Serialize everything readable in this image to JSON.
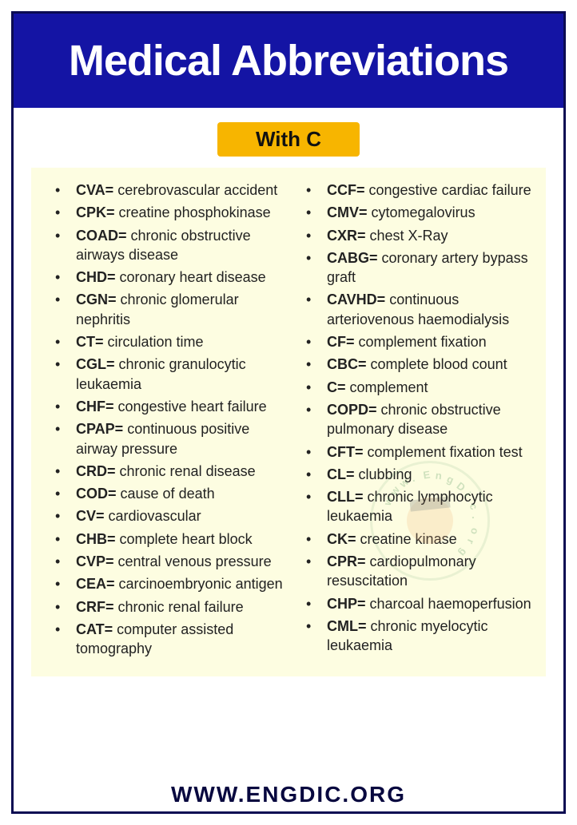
{
  "header": {
    "title": "Medical Abbreviations",
    "bg_color": "#1414a4",
    "title_color": "#ffffff",
    "title_fontsize": 54
  },
  "subtitle": {
    "label": "With C",
    "bg_color": "#f7b500",
    "text_color": "#111111",
    "fontsize": 26
  },
  "panel": {
    "bg_color": "#fdfde1",
    "text_color": "#222222",
    "fontsize": 18
  },
  "columns": {
    "left": [
      {
        "abbr": "CVA",
        "def": "cerebrovascular accident"
      },
      {
        "abbr": "CPK",
        "def": "creatine phosphokinase"
      },
      {
        "abbr": "COAD",
        "def": "chronic obstructive airways disease"
      },
      {
        "abbr": "CHD",
        "def": "coronary heart disease"
      },
      {
        "abbr": "CGN",
        "def": "chronic glomerular nephritis"
      },
      {
        "abbr": "CT",
        "def": "circulation time"
      },
      {
        "abbr": "CGL",
        "def": "chronic granulocytic leukaemia"
      },
      {
        "abbr": "CHF",
        "def": "congestive heart failure"
      },
      {
        "abbr": "CPAP",
        "def": "continuous positive airway pressure"
      },
      {
        "abbr": "CRD",
        "def": "chronic renal disease"
      },
      {
        "abbr": "COD",
        "def": "cause of death"
      },
      {
        "abbr": "CV",
        "def": "cardiovascular"
      },
      {
        "abbr": "CHB",
        "def": "complete heart block"
      },
      {
        "abbr": "CVP",
        "def": "central venous pressure"
      },
      {
        "abbr": "CEA",
        "def": "carcinoembryonic antigen"
      },
      {
        "abbr": "CRF",
        "def": "chronic renal failure"
      },
      {
        "abbr": "CAT",
        "def": "computer assisted tomography"
      }
    ],
    "right": [
      {
        "abbr": "CCF",
        "def": "congestive cardiac failure"
      },
      {
        "abbr": "CMV",
        "def": "cytomegalovirus"
      },
      {
        "abbr": "CXR",
        "def": "chest X-Ray"
      },
      {
        "abbr": "CABG",
        "def": "coronary artery bypass graft"
      },
      {
        "abbr": "CAVHD",
        "def": "continuous arteriovenous haemodialysis"
      },
      {
        "abbr": "CF",
        "def": "complement fixation"
      },
      {
        "abbr": "CBC",
        "def": "complete blood count"
      },
      {
        "abbr": "C",
        "def": "complement"
      },
      {
        "abbr": "COPD",
        "def": "chronic obstructive pulmonary disease"
      },
      {
        "abbr": "CFT",
        "def": "complement fixation test"
      },
      {
        "abbr": "CL",
        "def": "clubbing"
      },
      {
        "abbr": "CLL",
        "def": "chronic lymphocytic leukaemia"
      },
      {
        "abbr": "CK",
        "def": "creatine kinase"
      },
      {
        "abbr": "CPR",
        "def": "cardiopulmonary resuscitation"
      },
      {
        "abbr": "CHP",
        "def": "charcoal haemoperfusion"
      },
      {
        "abbr": "CML",
        "def": "chronic myelocytic leukaemia"
      }
    ]
  },
  "watermark": {
    "text": "www.EngDic.org",
    "ring_color": "rgba(90,155,100,0.35)",
    "radius": 65
  },
  "footer": {
    "text": "WWW.ENGDIC.ORG",
    "color": "#08083f",
    "fontsize": 28
  },
  "border_color": "#0b0b52"
}
